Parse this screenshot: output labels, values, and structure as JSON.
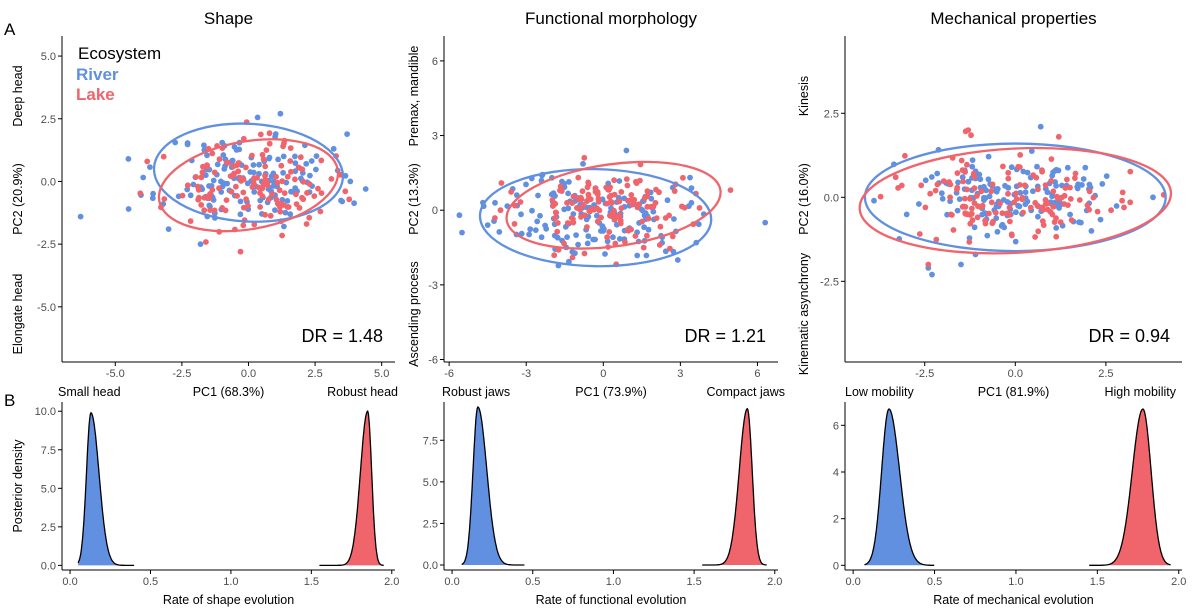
{
  "panel_labels": {
    "a": "A",
    "b": "B"
  },
  "legend": {
    "title": "Ecosystem",
    "items": [
      {
        "label": "River",
        "color": "#6190e0"
      },
      {
        "label": "Lake",
        "color": "#f0646c"
      }
    ]
  },
  "chart_data": [
    {
      "id": "shape_scatter",
      "type": "scatter",
      "title": "Shape",
      "xlabel": "PC1 (68.3%)",
      "ylabel": "PC2 (20.9%)",
      "x_low_label": "Small head",
      "x_high_label": "Robust head",
      "y_high_label": "Deep head",
      "y_low_label": "Elongate head",
      "xlim": [
        -7,
        5.5
      ],
      "ylim": [
        -7.2,
        5.8
      ],
      "xticks": [
        -5,
        -2.5,
        0,
        2.5,
        5
      ],
      "xticklabels": [
        "-5.0",
        "-2.5",
        "0.0",
        "2.5",
        "5.0"
      ],
      "yticks": [
        -5,
        -2.5,
        0,
        2.5,
        5
      ],
      "yticklabels": [
        "-5.0",
        "-2.5",
        "0.0",
        "2.5",
        "5.0"
      ],
      "dr_label": "DR = 1.48",
      "series": [
        {
          "name": "River",
          "color": "#6190e0",
          "center": [
            0,
            0.1
          ],
          "spread": [
            1.6,
            0.9
          ],
          "n": 150,
          "seed": 11,
          "outliers": [
            [
              -6.3,
              -1.4
            ],
            [
              -4.5,
              -1.1
            ],
            [
              4.4,
              -0.3
            ],
            [
              1.2,
              2.7
            ],
            [
              -1.8,
              -2.5
            ],
            [
              -3.0,
              -1.9
            ],
            [
              3.2,
              1.3
            ]
          ],
          "ellipse": {
            "center": [
              0,
              0.35
            ],
            "rx": 3.55,
            "ry": 1.95,
            "angle": 3
          }
        },
        {
          "name": "Lake",
          "color": "#f0646c",
          "center": [
            0,
            -0.25
          ],
          "spread": [
            1.5,
            0.85
          ],
          "n": 140,
          "seed": 23,
          "outliers": [
            [
              -3.8,
              0.8
            ],
            [
              -0.3,
              -2.8
            ],
            [
              2.7,
              -1.2
            ],
            [
              1.3,
              1.4
            ],
            [
              -1.5,
              1.3
            ]
          ],
          "ellipse": {
            "center": [
              0,
              -0.15
            ],
            "rx": 3.4,
            "ry": 1.75,
            "angle": -10
          }
        }
      ]
    },
    {
      "id": "functional_scatter",
      "type": "scatter",
      "title": "Functional morphology",
      "xlabel": "PC1 (73.9%)",
      "ylabel": "PC2 (13.3%)",
      "x_low_label": "Robust jaws",
      "x_high_label": "Compact jaws",
      "y_high_label": "Premax, mandible",
      "y_low_label": "Ascending process",
      "xlim": [
        -6.2,
        6.8
      ],
      "ylim": [
        -6.1,
        7.0
      ],
      "xticks": [
        -6,
        -3,
        0,
        3,
        6
      ],
      "xticklabels": [
        "-6",
        "-3",
        "0",
        "3",
        "6"
      ],
      "yticks": [
        -6,
        -3,
        0,
        3,
        6
      ],
      "yticklabels": [
        "-6",
        "-3",
        "0",
        "3",
        "6"
      ],
      "dr_label": "DR = 1.21",
      "series": [
        {
          "name": "River",
          "color": "#6190e0",
          "center": [
            -0.4,
            -0.2
          ],
          "spread": [
            1.8,
            0.85
          ],
          "n": 150,
          "seed": 37,
          "outliers": [
            [
              -5.6,
              -0.2
            ],
            [
              -5.5,
              -0.9
            ],
            [
              -4.5,
              -0.6
            ],
            [
              6.3,
              -0.5
            ],
            [
              2.9,
              -2.0
            ],
            [
              0.9,
              2.4
            ],
            [
              -2.0,
              1.3
            ]
          ],
          "ellipse": {
            "center": [
              -0.3,
              -0.3
            ],
            "rx": 4.5,
            "ry": 1.95,
            "angle": 1
          }
        },
        {
          "name": "Lake",
          "color": "#f0646c",
          "center": [
            0.3,
            0.1
          ],
          "spread": [
            1.7,
            0.8
          ],
          "n": 140,
          "seed": 53,
          "outliers": [
            [
              -4.0,
              0.0
            ],
            [
              3.1,
              1.3
            ],
            [
              -1.2,
              -1.9
            ],
            [
              2.2,
              -1.4
            ]
          ],
          "ellipse": {
            "center": [
              0.4,
              0.2
            ],
            "rx": 4.2,
            "ry": 1.65,
            "angle": -8
          }
        }
      ]
    },
    {
      "id": "mechanical_scatter",
      "type": "scatter",
      "title": "Mechanical properties",
      "xlabel": "PC1 (81.9%)",
      "ylabel": "PC2 (16.0%)",
      "x_low_label": "Low mobility",
      "x_high_label": "High mobility",
      "y_high_label": "Kinesis",
      "y_low_label": "Kinematic asynchrony",
      "xlim": [
        -4.7,
        4.6
      ],
      "ylim": [
        -4.9,
        4.8
      ],
      "xticks": [
        -2.5,
        0,
        2.5
      ],
      "xticklabels": [
        "-2.5",
        "0.0",
        "2.5"
      ],
      "yticks": [
        -2.5,
        0,
        2.5
      ],
      "yticklabels": [
        "-2.5",
        "0.0",
        "2.5"
      ],
      "dr_label": "DR = 0.94",
      "series": [
        {
          "name": "River",
          "color": "#6190e0",
          "center": [
            0,
            0.0
          ],
          "spread": [
            1.5,
            0.6
          ],
          "n": 150,
          "seed": 71,
          "outliers": [
            [
              -2.3,
              -2.3
            ],
            [
              -2.4,
              -2.1
            ],
            [
              -1.5,
              -2.0
            ],
            [
              -1.1,
              -1.7
            ],
            [
              0.7,
              2.1
            ],
            [
              3.8,
              0.0
            ],
            [
              -3.9,
              -0.1
            ],
            [
              2.1,
              -1.0
            ]
          ],
          "ellipse": {
            "center": [
              0,
              0.0
            ],
            "rx": 4.15,
            "ry": 1.6,
            "angle": 0
          }
        },
        {
          "name": "Lake",
          "color": "#f0646c",
          "center": [
            0,
            0.0
          ],
          "spread": [
            1.5,
            0.65
          ],
          "n": 140,
          "seed": 89,
          "outliers": [
            [
              -2.4,
              -2.0
            ],
            [
              -1.3,
              2.0
            ],
            [
              1.2,
              1.8
            ],
            [
              3.0,
              -0.3
            ],
            [
              -3.3,
              0.6
            ],
            [
              -0.1,
              -1.1
            ]
          ],
          "ellipse": {
            "center": [
              0,
              -0.1
            ],
            "rx": 4.3,
            "ry": 1.55,
            "angle": -3
          }
        }
      ]
    },
    {
      "id": "shape_rate",
      "type": "area",
      "title": "",
      "xlabel": "Rate of shape evolution",
      "ylabel": "Posterior density",
      "xlim": [
        -0.05,
        2.02
      ],
      "ylim": [
        -0.3,
        10.6
      ],
      "xticks": [
        0,
        0.5,
        1,
        1.5,
        2
      ],
      "xticklabels": [
        "0.0",
        "0.5",
        "1.0",
        "1.5",
        "2.0"
      ],
      "yticks": [
        0,
        2.5,
        5,
        7.5,
        10
      ],
      "yticklabels": [
        "0.0",
        "2.5",
        "5.0",
        "7.5",
        "10.0"
      ],
      "series": [
        {
          "name": "River",
          "color": "#6190e0",
          "peak": 0.13,
          "height": 9.9,
          "sd_left": 0.028,
          "sd_right": 0.05,
          "xmin": 0.05,
          "xmax": 0.4
        },
        {
          "name": "Lake",
          "color": "#f0646c",
          "peak": 1.85,
          "height": 10.0,
          "sd_left": 0.045,
          "sd_right": 0.025,
          "xmin": 1.55,
          "xmax": 1.95
        }
      ]
    },
    {
      "id": "functional_rate",
      "type": "area",
      "title": "",
      "xlabel": "Rate of functional evolution",
      "ylabel": "",
      "xlim": [
        -0.05,
        2.02
      ],
      "ylim": [
        -0.3,
        9.8
      ],
      "xticks": [
        0,
        0.5,
        1,
        1.5,
        2
      ],
      "xticklabels": [
        "0.0",
        "0.5",
        "1.0",
        "1.5",
        "2.0"
      ],
      "yticks": [
        0,
        2.5,
        5,
        7.5
      ],
      "yticklabels": [
        "0.0",
        "2.5",
        "5.0",
        "7.5"
      ],
      "series": [
        {
          "name": "River",
          "color": "#6190e0",
          "peak": 0.16,
          "height": 9.5,
          "sd_left": 0.03,
          "sd_right": 0.055,
          "xmin": 0.06,
          "xmax": 0.45
        },
        {
          "name": "Lake",
          "color": "#f0646c",
          "peak": 1.83,
          "height": 9.4,
          "sd_left": 0.05,
          "sd_right": 0.03,
          "xmin": 1.55,
          "xmax": 1.95
        }
      ]
    },
    {
      "id": "mechanical_rate",
      "type": "area",
      "title": "",
      "xlabel": "Rate of mechanical evolution",
      "ylabel": "",
      "xlim": [
        -0.05,
        2.02
      ],
      "ylim": [
        -0.2,
        7.0
      ],
      "xticks": [
        0,
        0.5,
        1,
        1.5,
        2
      ],
      "xticklabels": [
        "0.0",
        "0.5",
        "1.0",
        "1.5",
        "2.0"
      ],
      "yticks": [
        0,
        2,
        4,
        6
      ],
      "yticklabels": [
        "0",
        "2",
        "4",
        "6"
      ],
      "series": [
        {
          "name": "River",
          "color": "#6190e0",
          "peak": 0.22,
          "height": 6.7,
          "sd_left": 0.045,
          "sd_right": 0.065,
          "xmin": 0.07,
          "xmax": 0.5
        },
        {
          "name": "Lake",
          "color": "#f0646c",
          "peak": 1.78,
          "height": 6.7,
          "sd_left": 0.065,
          "sd_right": 0.05,
          "xmin": 1.45,
          "xmax": 1.95
        }
      ]
    }
  ]
}
